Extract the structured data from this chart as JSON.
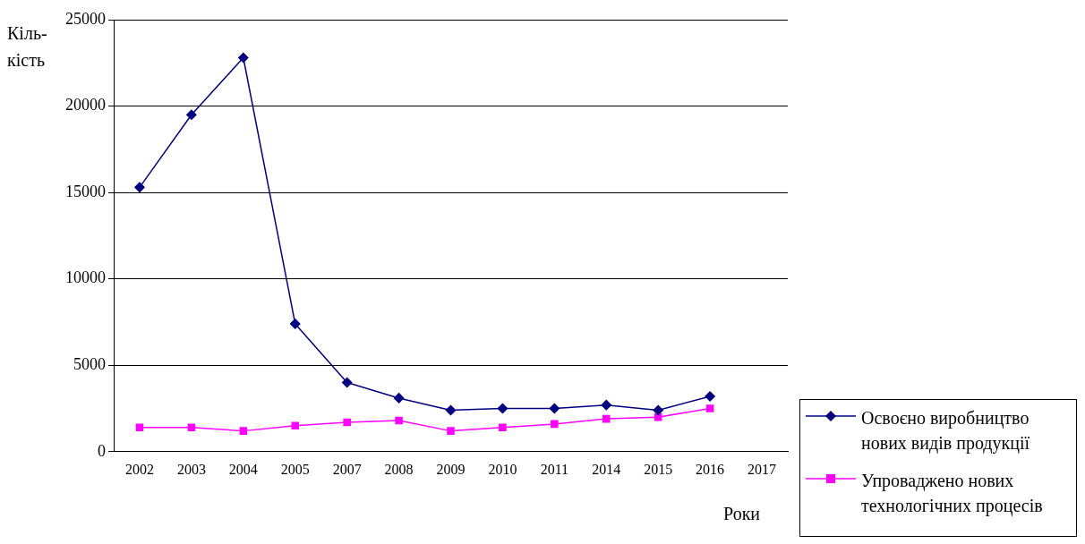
{
  "chart_data": {
    "type": "line",
    "ylabel": "Кіль-кість",
    "xlabel": "Роки",
    "categories": [
      "2002",
      "2003",
      "2004",
      "2005",
      "2007",
      "2008",
      "2009",
      "2010",
      "2011",
      "2014",
      "2015",
      "2016",
      "2017"
    ],
    "series": [
      {
        "name": "Освоєно виробництво нових видів продукції",
        "color": "#000080",
        "marker": "diamond",
        "values": [
          15300,
          19500,
          22800,
          7400,
          4000,
          3100,
          2400,
          2500,
          2500,
          2700,
          2400,
          3200,
          null
        ]
      },
      {
        "name": "Упроваджено нових технологічних процесів",
        "color": "#ff00ff",
        "marker": "square",
        "values": [
          1400,
          1400,
          1200,
          1500,
          1700,
          1800,
          1200,
          1400,
          1600,
          1900,
          2000,
          2500,
          null
        ]
      }
    ],
    "ylim": [
      0,
      25000
    ],
    "yticks": [
      0,
      5000,
      10000,
      15000,
      20000,
      25000
    ],
    "grid": "y",
    "legend": "bottom right"
  }
}
